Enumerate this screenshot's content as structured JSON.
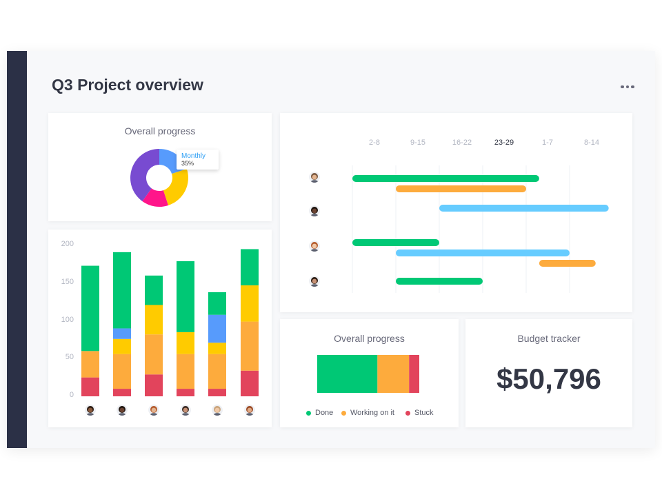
{
  "header": {
    "title": "Q3 Project overview",
    "more_icon": "more-dots-icon"
  },
  "colors": {
    "done": "#00c875",
    "working": "#fdab3d",
    "stuck": "#e2445c",
    "blue": "#579bfc",
    "light_blue": "#66ccff",
    "yellow": "#ffcb00",
    "purple": "#784bd1",
    "pink": "#ff158a",
    "rail": "#2b3046"
  },
  "overall_progress_donut": {
    "title": "Overall progress",
    "tooltip": {
      "label": "Monthly",
      "value": "35%"
    },
    "chart_data": {
      "type": "pie",
      "slices": [
        {
          "value": 20,
          "color": "#579bfc"
        },
        {
          "value": 25,
          "color": "#ffcb00"
        },
        {
          "value": 15,
          "color": "#ff158a"
        },
        {
          "value": 40,
          "color": "#784bd1"
        }
      ]
    }
  },
  "stacked_bars": {
    "chart_data": {
      "type": "bar",
      "stacked": true,
      "y_ticks": [
        "200",
        "150",
        "100",
        "50",
        "0"
      ],
      "ylim": [
        0,
        200
      ],
      "bars": [
        {
          "avatar": "person-1-avatar",
          "segments": [
            {
              "value": 25,
              "color": "#e2445c"
            },
            {
              "value": 35,
              "color": "#fdab3d"
            },
            {
              "value": 113,
              "color": "#00c875"
            }
          ]
        },
        {
          "avatar": "person-2-avatar",
          "segments": [
            {
              "value": 10,
              "color": "#e2445c"
            },
            {
              "value": 46,
              "color": "#fdab3d"
            },
            {
              "value": 20,
              "color": "#ffcb00"
            },
            {
              "value": 14,
              "color": "#579bfc"
            },
            {
              "value": 101,
              "color": "#00c875"
            }
          ]
        },
        {
          "avatar": "person-3-avatar",
          "segments": [
            {
              "value": 29,
              "color": "#e2445c"
            },
            {
              "value": 53,
              "color": "#fdab3d"
            },
            {
              "value": 39,
              "color": "#ffcb00"
            },
            {
              "value": 39,
              "color": "#00c875"
            }
          ]
        },
        {
          "avatar": "person-4-avatar",
          "segments": [
            {
              "value": 10,
              "color": "#e2445c"
            },
            {
              "value": 46,
              "color": "#fdab3d"
            },
            {
              "value": 29,
              "color": "#ffcb00"
            },
            {
              "value": 94,
              "color": "#00c875"
            }
          ]
        },
        {
          "avatar": "person-5-avatar",
          "segments": [
            {
              "value": 10,
              "color": "#e2445c"
            },
            {
              "value": 46,
              "color": "#fdab3d"
            },
            {
              "value": 15,
              "color": "#ffcb00"
            },
            {
              "value": 37,
              "color": "#579bfc"
            },
            {
              "value": 30,
              "color": "#00c875"
            }
          ]
        },
        {
          "avatar": "person-6-avatar",
          "segments": [
            {
              "value": 34,
              "color": "#e2445c"
            },
            {
              "value": 65,
              "color": "#fdab3d"
            },
            {
              "value": 48,
              "color": "#ffcb00"
            },
            {
              "value": 48,
              "color": "#00c875"
            }
          ]
        }
      ]
    }
  },
  "timeline": {
    "chart_data": {
      "type": "gantt",
      "weeks": [
        "2-8",
        "9-15",
        "16-22",
        "23-29",
        "1-7",
        "8-14"
      ],
      "current_week_index": 3,
      "rows": [
        {
          "avatar": "person-a-avatar",
          "bars": [
            {
              "start": 0.0,
              "end": 4.3,
              "color": "#00c875"
            },
            {
              "start": 1.0,
              "end": 4.0,
              "color": "#fdab3d"
            }
          ]
        },
        {
          "avatar": "person-b-avatar",
          "bars": [
            {
              "start": 2.0,
              "end": 5.9,
              "color": "#66ccff"
            }
          ]
        },
        {
          "avatar": "person-c-avatar",
          "bars": [
            {
              "start": 0.0,
              "end": 2.0,
              "color": "#00c875"
            },
            {
              "start": 1.0,
              "end": 5.0,
              "color": "#66ccff"
            },
            {
              "start": 4.3,
              "end": 5.6,
              "color": "#fdab3d"
            }
          ]
        },
        {
          "avatar": "person-d-avatar",
          "bars": [
            {
              "start": 1.0,
              "end": 3.0,
              "color": "#00c875"
            }
          ]
        }
      ]
    }
  },
  "overall_progress_bar": {
    "title": "Overall progress",
    "chart_data": {
      "type": "bar",
      "stacked": true,
      "segments": [
        {
          "name": "Done",
          "value": 59,
          "color": "#00c875"
        },
        {
          "name": "Working on it",
          "value": 31,
          "color": "#fdab3d"
        },
        {
          "name": "Stuck",
          "value": 10,
          "color": "#e2445c"
        }
      ]
    },
    "legend": [
      {
        "label": "Done",
        "color": "#00c875"
      },
      {
        "label": "Working on it",
        "color": "#fdab3d"
      },
      {
        "label": "Stuck",
        "color": "#e2445c"
      }
    ]
  },
  "budget": {
    "title": "Budget tracker",
    "amount": "$50,796"
  }
}
